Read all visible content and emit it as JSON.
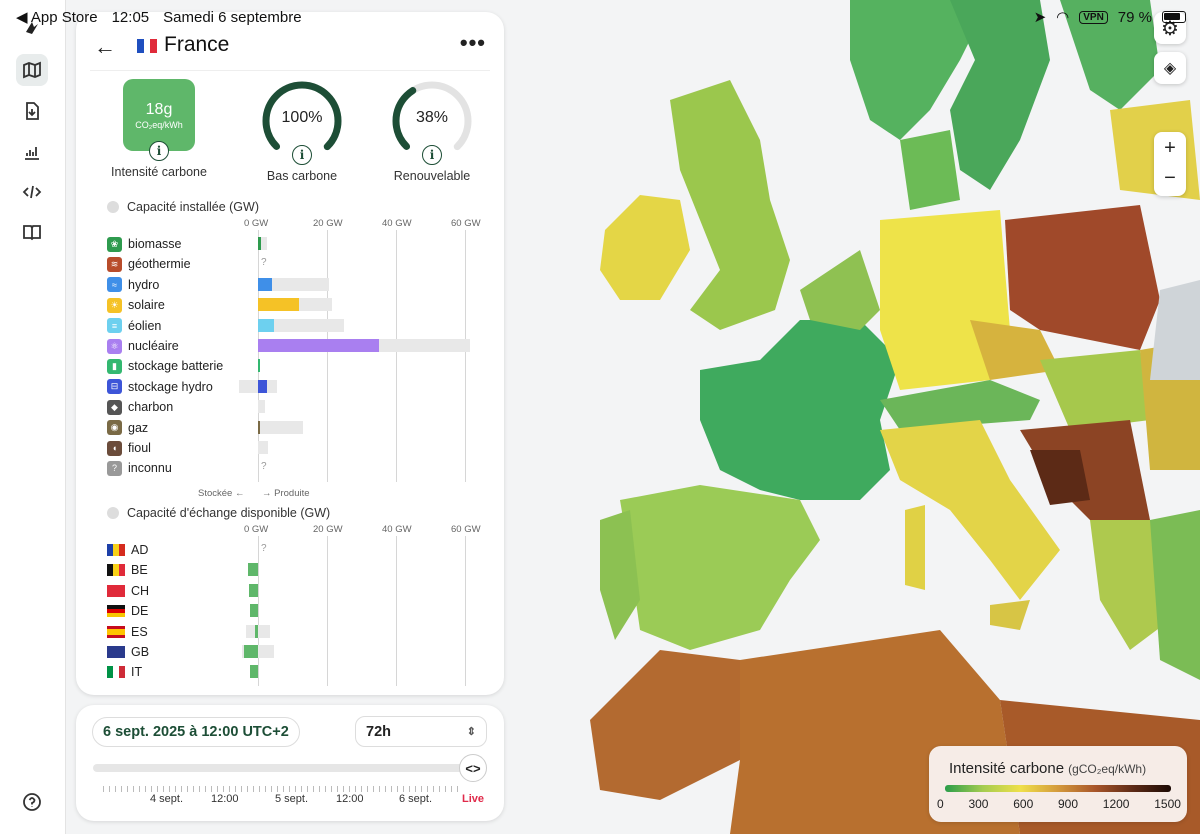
{
  "status_bar": {
    "back_app": "◀ App Store",
    "time": "12:05",
    "date": "Samedi 6 septembre",
    "vpn": "VPN",
    "battery": "79 %"
  },
  "country": {
    "name": "France",
    "kpis": {
      "carbon_intensity_value": "18g",
      "carbon_intensity_unit": "CO₂eq/kWh",
      "carbon_intensity_label": "Intensité carbone",
      "low_carbon_value": "100%",
      "low_carbon_label": "Bas carbone",
      "low_carbon_fraction": 1.0,
      "renewable_value": "38%",
      "renewable_label": "Renouvelable",
      "renewable_fraction": 0.38
    },
    "capacity_section": {
      "title": "Capacité installée (GW)",
      "axis": [
        "0 GW",
        "20 GW",
        "40 GW",
        "60 GW"
      ],
      "axis_max_gw": 60,
      "footer_stored": "Stockée ←",
      "footer_produced": "→ Produite"
    },
    "sources": [
      {
        "label": "biomasse",
        "icon": "biomass-icon",
        "color": "#2e9b4e",
        "capacity_gw": 2.5,
        "production_gw": 1.0,
        "unknown": false
      },
      {
        "label": "géothermie",
        "icon": "geothermal-icon",
        "color": "#b84c2b",
        "capacity_gw": 0,
        "production_gw": 0,
        "unknown": true
      },
      {
        "label": "hydro",
        "icon": "hydro-icon",
        "color": "#3f8fe8",
        "capacity_gw": 20.5,
        "production_gw": 4.0,
        "unknown": false
      },
      {
        "label": "solaire",
        "icon": "solar-icon",
        "color": "#f5c226",
        "capacity_gw": 21.5,
        "production_gw": 12.0,
        "unknown": false
      },
      {
        "label": "éolien",
        "icon": "wind-icon",
        "color": "#6dd0ef",
        "capacity_gw": 25,
        "production_gw": 4.5,
        "unknown": false
      },
      {
        "label": "nucléaire",
        "icon": "nuclear-icon",
        "color": "#a97ff0",
        "capacity_gw": 61.4,
        "production_gw": 35.0,
        "unknown": false
      },
      {
        "label": "stockage batterie",
        "icon": "battery-storage-icon",
        "color": "#33b870",
        "capacity_gw": 0.6,
        "production_gw": 0.1,
        "unknown": false
      },
      {
        "label": "stockage hydro",
        "icon": "hydro-storage-icon",
        "color": "#3d55d8",
        "capacity_gw": 5.5,
        "production_gw": 2.5,
        "stored_gw": 5.5,
        "unknown": false
      },
      {
        "label": "charbon",
        "icon": "coal-icon",
        "color": "#555",
        "capacity_gw": 2,
        "production_gw": 0,
        "unknown": false
      },
      {
        "label": "gaz",
        "icon": "gas-icon",
        "color": "#7a6a45",
        "capacity_gw": 13,
        "production_gw": 0.3,
        "unknown": false
      },
      {
        "label": "fioul",
        "icon": "oil-icon",
        "color": "#6b4c3b",
        "capacity_gw": 3,
        "production_gw": 0,
        "unknown": false
      },
      {
        "label": "inconnu",
        "icon": "unknown-icon",
        "color": "#999",
        "capacity_gw": 0,
        "production_gw": 0,
        "unknown": true
      }
    ],
    "exchange_section": {
      "title": "Capacité d'échange disponible (GW)",
      "axis": [
        "0 GW",
        "20 GW",
        "40 GW",
        "60 GW"
      ]
    },
    "exchanges": [
      {
        "code": "AD",
        "flag": "ad-flag",
        "capacity_gw": 0,
        "flow_gw": 0,
        "unknown": true
      },
      {
        "code": "BE",
        "flag": "be-flag",
        "capacity_gw": 0,
        "flow_gw": -3.0,
        "unknown": false
      },
      {
        "code": "CH",
        "flag": "ch-flag",
        "capacity_gw": 0,
        "flow_gw": -2.5,
        "unknown": false
      },
      {
        "code": "DE",
        "flag": "de-flag",
        "capacity_gw": 0,
        "flow_gw": -2.2,
        "unknown": false
      },
      {
        "code": "ES",
        "flag": "es-flag",
        "capacity_gw": 7,
        "flow_gw": -0.8,
        "unknown": false
      },
      {
        "code": "GB",
        "flag": "gb-flag",
        "capacity_gw": 9,
        "flow_gw": -4.0,
        "unknown": false
      },
      {
        "code": "IT",
        "flag": "it-flag",
        "capacity_gw": 0,
        "flow_gw": -2.2,
        "unknown": false
      }
    ]
  },
  "timeline": {
    "date": "6 sept. 2025 à 12:00 UTC+2",
    "range": "72h",
    "labels": [
      "4 sept.",
      "12:00",
      "5 sept.",
      "12:00",
      "6 sept."
    ],
    "live": "Live",
    "progress": 1.0
  },
  "legend": {
    "title": "Intensité carbone",
    "unit": "(gCO₂eq/kWh)",
    "ticks": [
      "0",
      "300",
      "600",
      "900",
      "1200",
      "1500"
    ]
  },
  "colors": {
    "brand_dark": "#1d4e36",
    "low_carbon_green": "#5fb76a",
    "live_red": "#e02a4a"
  }
}
